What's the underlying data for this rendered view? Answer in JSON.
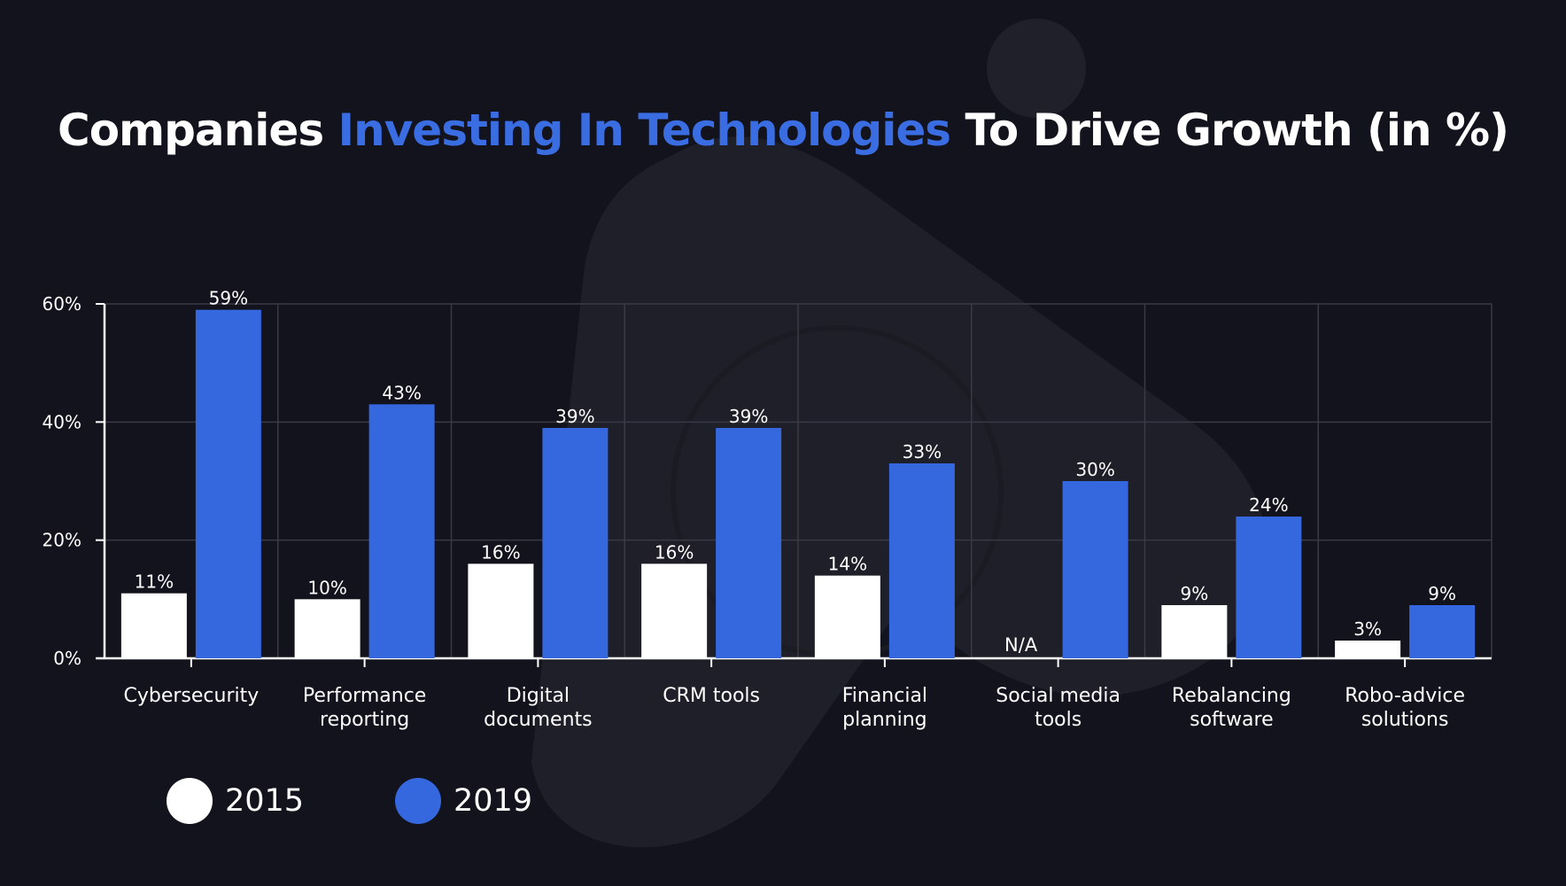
{
  "title": {
    "part1": "Companies ",
    "highlight": "Investing In Technologies",
    "part2": " To Drive Growth (in %)"
  },
  "colors": {
    "background": "#13131d",
    "accent": "#3a6ce2",
    "series_2015": "#ffffff",
    "series_2019": "#3567de",
    "grid": "#3a3a46"
  },
  "chart_data": {
    "type": "bar",
    "categories": [
      "Cybersecurity",
      "Performance reporting",
      "Digital documents",
      "CRM tools",
      "Financial planning",
      "Social media tools",
      "Rebalancing software",
      "Robo-advice solutions"
    ],
    "category_lines": [
      [
        "Cybersecurity"
      ],
      [
        "Performance",
        "reporting"
      ],
      [
        "Digital",
        "documents"
      ],
      [
        "CRM tools"
      ],
      [
        "Financial",
        "planning"
      ],
      [
        "Social media",
        "tools"
      ],
      [
        "Rebalancing",
        "software"
      ],
      [
        "Robo-advice",
        "solutions"
      ]
    ],
    "series": [
      {
        "name": "2015",
        "values": [
          11,
          10,
          16,
          16,
          14,
          null,
          9,
          3
        ],
        "labels": [
          "11%",
          "10%",
          "16%",
          "16%",
          "14%",
          "N/A",
          "9%",
          "3%"
        ]
      },
      {
        "name": "2019",
        "values": [
          59,
          43,
          39,
          39,
          33,
          30,
          24,
          9
        ],
        "labels": [
          "59%",
          "43%",
          "39%",
          "39%",
          "33%",
          "30%",
          "24%",
          "9%"
        ]
      }
    ],
    "yticks": [
      "0%",
      "20%",
      "40%",
      "60%"
    ],
    "ylim": [
      0,
      60
    ],
    "grid": true,
    "legend_position": "bottom-left"
  }
}
